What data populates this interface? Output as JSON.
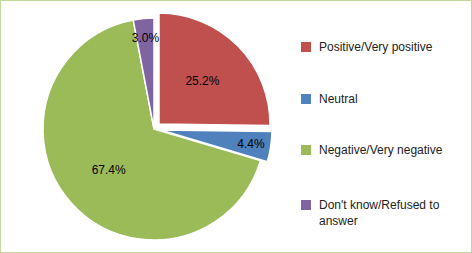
{
  "chart_data": {
    "type": "pie",
    "categories": [
      "Positive/Very positive",
      "Neutral",
      "Negative/Very negative",
      "Don't know/Refused to answer"
    ],
    "values": [
      25.2,
      4.4,
      67.4,
      3.0
    ],
    "value_labels": [
      "25.2%",
      "4.4%",
      "67.4%",
      "3.0%"
    ],
    "colors": [
      "#c0504d",
      "#4f81bd",
      "#9bbb59",
      "#8064a2"
    ],
    "data_labels": true,
    "legend": "right"
  }
}
